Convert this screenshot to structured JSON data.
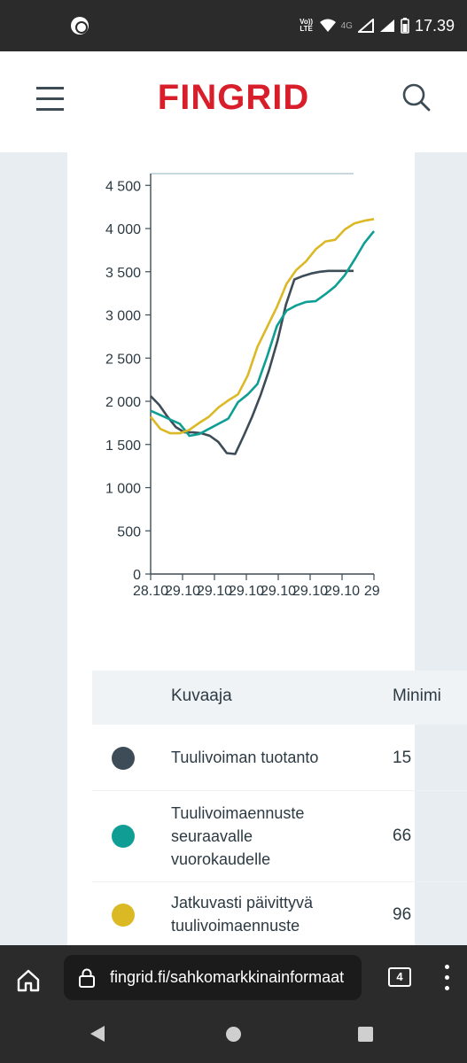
{
  "status_bar": {
    "network_label": "Vo)) LTE",
    "network_type": "4G",
    "time": "17.39",
    "icons": [
      "app-notification-icon",
      "wifi-icon",
      "signal-icon",
      "signal-icon",
      "battery-icon"
    ]
  },
  "header": {
    "logo": "FINGRID",
    "menu_icon": "hamburger-menu-icon",
    "search_icon": "search-icon",
    "brand_color": "#d81e2b"
  },
  "chart_data": {
    "type": "line",
    "x_tick_labels": [
      "28.10",
      "29.10",
      "29.10",
      "29.10",
      "29.10",
      "29.10",
      "29.10",
      "29."
    ],
    "y_tick_labels": [
      "0",
      "500",
      "1 000",
      "1 500",
      "2 000",
      "2 500",
      "3 000",
      "3 500",
      "4 000",
      "4 500"
    ],
    "ylim": [
      0,
      4600
    ],
    "series": [
      {
        "name": "Tuulivoiman tuotanto",
        "color": "#3d4c56",
        "values": [
          2060,
          1960,
          1820,
          1700,
          1640,
          1640,
          1630,
          1600,
          1530,
          1400,
          1390,
          1600,
          1820,
          2070,
          2360,
          2700,
          3120,
          3410,
          3450,
          3480,
          3500,
          3510,
          3510,
          3510,
          3510
        ]
      },
      {
        "name": "Tuulivoimaennuste seuraavalle vuorokaudelle",
        "color": "#0e9e94",
        "values": [
          1890,
          1840,
          1790,
          1740,
          1600,
          1620,
          1680,
          1740,
          1800,
          1990,
          2080,
          2200,
          2520,
          2870,
          3050,
          3110,
          3150,
          3160,
          3240,
          3330,
          3460,
          3640,
          3830,
          3970
        ]
      },
      {
        "name": "Jatkuvasti päivittyvä tuulivoimaennuste",
        "color": "#dbb924",
        "values": [
          1820,
          1680,
          1630,
          1630,
          1670,
          1750,
          1820,
          1930,
          2010,
          2080,
          2300,
          2630,
          2860,
          3090,
          3360,
          3520,
          3620,
          3760,
          3850,
          3870,
          3990,
          4060,
          4090,
          4110
        ]
      }
    ]
  },
  "table": {
    "headers": [
      "Kuvaaja",
      "Minimi"
    ],
    "rows": [
      {
        "label": "Tuulivoiman tuotanto",
        "color": "#3d4c56",
        "min": "15"
      },
      {
        "label": "Tuulivoimaennuste seuraavalle vuorokaudelle",
        "color": "#0e9e94",
        "min": "66"
      },
      {
        "label": "Jatkuvasti päivittyvä tuulivoimaennuste",
        "color": "#dbb924",
        "min": "96"
      }
    ]
  },
  "browser": {
    "url": "fingrid.fi/sahkomarkkinainformaat",
    "tab_count": "4",
    "home_icon": "home-icon",
    "lock_icon": "lock-icon",
    "menu_icon": "more-vert-icon"
  },
  "nav": {
    "icons": [
      "back-icon",
      "home-nav-icon",
      "recents-icon"
    ]
  }
}
